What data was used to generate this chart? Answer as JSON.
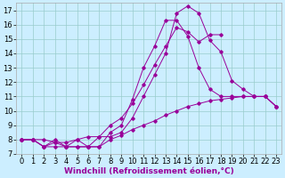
{
  "xlabel": "Windchill (Refroidissement éolien,°C)",
  "background_color": "#cceeff",
  "line_color": "#990099",
  "xlim": [
    -0.5,
    23.5
  ],
  "ylim": [
    7,
    17.5
  ],
  "xticks": [
    0,
    1,
    2,
    3,
    4,
    5,
    6,
    7,
    8,
    9,
    10,
    11,
    12,
    13,
    14,
    15,
    16,
    17,
    18,
    19,
    20,
    21,
    22,
    23
  ],
  "yticks": [
    7,
    8,
    9,
    10,
    11,
    12,
    13,
    14,
    15,
    16,
    17
  ],
  "series_x": [
    [
      0,
      1,
      2,
      3,
      4,
      5,
      6,
      7,
      8,
      9,
      10,
      11,
      12,
      13,
      14,
      15,
      16,
      17,
      18,
      19,
      20,
      21,
      22,
      23
    ],
    [
      0,
      1,
      2,
      3,
      4,
      5,
      6,
      7,
      8,
      9,
      10,
      11,
      12,
      13,
      14,
      15,
      16,
      17,
      18,
      19,
      20,
      21,
      22,
      23
    ],
    [
      0,
      1,
      2,
      3,
      4,
      5,
      6,
      7,
      8,
      9,
      10,
      11,
      12,
      13,
      14,
      15,
      16,
      17,
      18
    ],
    [
      0,
      1,
      2,
      3,
      4,
      5,
      6,
      7,
      8,
      9,
      10,
      11,
      12,
      13,
      14,
      15,
      16,
      17,
      18,
      19,
      20,
      21,
      22,
      23
    ]
  ],
  "series_y": [
    [
      8.0,
      8.0,
      7.5,
      7.5,
      7.5,
      7.5,
      7.5,
      7.5,
      8.0,
      8.3,
      8.7,
      9.0,
      9.3,
      9.7,
      10.0,
      10.3,
      10.5,
      10.7,
      10.8,
      10.9,
      11.0,
      11.0,
      11.0,
      10.3
    ],
    [
      8.0,
      8.0,
      8.0,
      7.8,
      7.5,
      7.5,
      7.5,
      8.2,
      8.2,
      8.5,
      9.5,
      11.0,
      12.5,
      14.0,
      16.8,
      17.3,
      16.8,
      14.9,
      14.1,
      12.1,
      11.5,
      11.0,
      11.0,
      10.3
    ],
    [
      8.0,
      8.0,
      7.5,
      7.8,
      7.8,
      8.0,
      8.2,
      8.2,
      9.0,
      9.5,
      10.5,
      11.8,
      13.2,
      14.5,
      15.8,
      15.5,
      14.8,
      15.3,
      15.3
    ],
    [
      8.0,
      8.0,
      7.5,
      8.0,
      7.5,
      8.0,
      7.5,
      7.5,
      8.5,
      9.0,
      10.8,
      13.0,
      14.5,
      16.3,
      16.3,
      15.2,
      13.0,
      11.5,
      11.0,
      11.0,
      11.0,
      11.0,
      11.0,
      10.3
    ]
  ],
  "grid_color": "#99cccc",
  "xlabel_fontsize": 6.5,
  "tick_fontsize": 6
}
